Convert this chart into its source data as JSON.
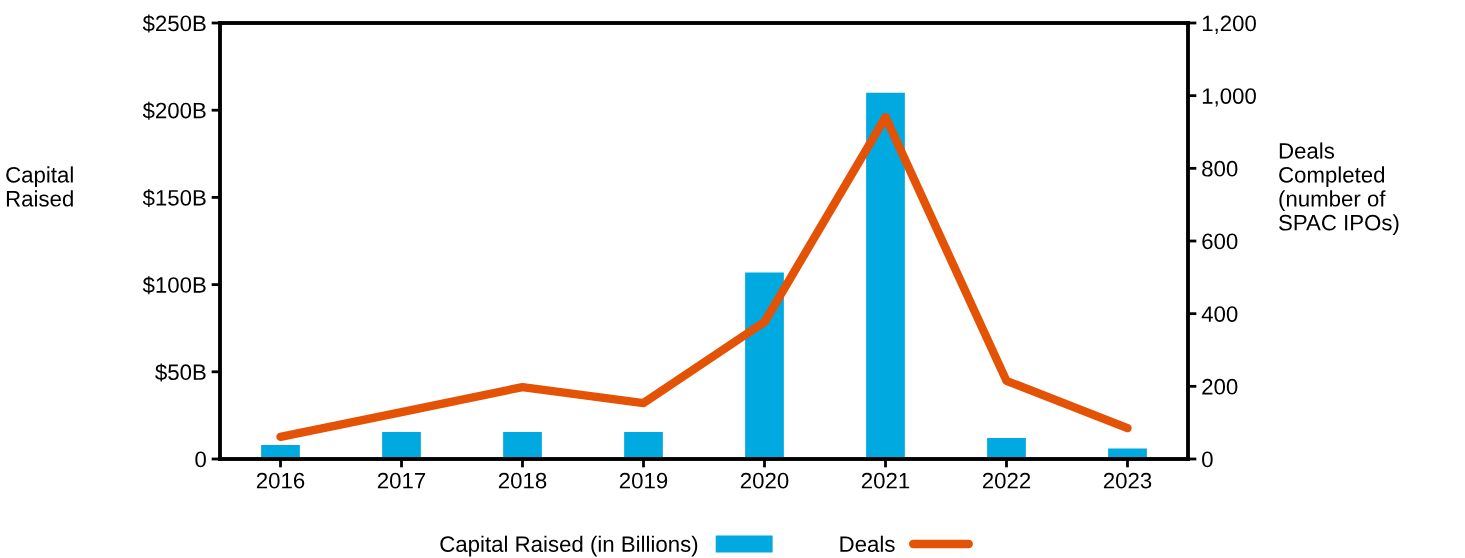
{
  "chart_data": {
    "type": "bar",
    "ylabel": "Capital\nRaised",
    "y2label": "Deals\nCompleted\n(number of\nSPAC IPOs)",
    "categories": [
      "2016",
      "2017",
      "2018",
      "2019",
      "2020",
      "2021",
      "2022",
      "2023"
    ],
    "series": [
      {
        "name": "Capital Raised (in Billions)",
        "color": "#00a9e0",
        "values": [
          8,
          15.5,
          15.5,
          15.5,
          107,
          210,
          12,
          6
        ]
      },
      {
        "name": "Deals",
        "type": "line",
        "axis": "y2",
        "color": "#e35205",
        "values": [
          61,
          129,
          198,
          154,
          377,
          941,
          215,
          85
        ]
      }
    ],
    "ylim": [
      0,
      250
    ],
    "yticks": [
      {
        "value": 0,
        "label": "0"
      },
      {
        "value": 50,
        "label": "$50B"
      },
      {
        "value": 100,
        "label": "$100B"
      },
      {
        "value": 150,
        "label": "$150B"
      },
      {
        "value": 200,
        "label": "$200B"
      },
      {
        "value": 250,
        "label": "$250B"
      }
    ],
    "y2lim": [
      0,
      1200
    ],
    "y2ticks": [
      0,
      200,
      400,
      600,
      800,
      {
        "value": 1000,
        "label": "1,000"
      },
      {
        "value": 1200,
        "label": "1,200"
      }
    ],
    "grid": false,
    "legend": "bottom",
    "marker": "none",
    "line_style": "solid"
  }
}
